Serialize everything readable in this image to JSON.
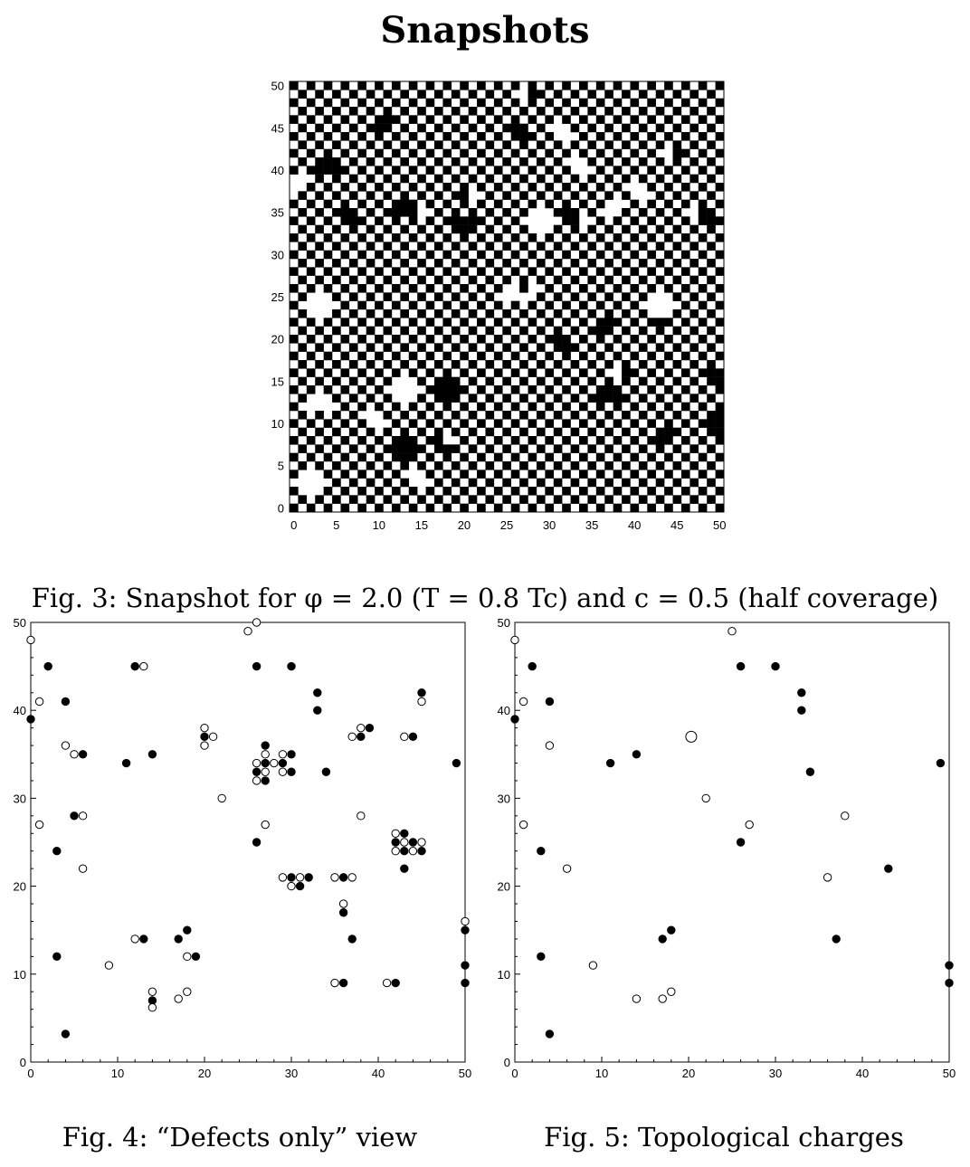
{
  "page_title": "Snapshots",
  "captions": {
    "fig3": "Fig. 3: Snapshot for φ = 2.0 (T = 0.8 Tc) and c = 0.5 (half coverage)",
    "fig4": "Fig. 4: “Defects only” view",
    "fig5": "Fig. 5: Topological charges"
  },
  "colors": {
    "occupied": "#000000",
    "empty": "#ffffff",
    "axis": "#000000"
  },
  "chart_data": [
    {
      "id": "snapshot",
      "type": "heatmap",
      "title": "",
      "xlabel": "",
      "ylabel": "",
      "xlim": [
        0,
        50
      ],
      "ylim": [
        0,
        50
      ],
      "ticks": [
        0,
        5,
        10,
        15,
        20,
        25,
        30,
        35,
        40,
        45,
        50
      ],
      "lattice_size": 51,
      "base_pattern": "checkerboard (black where x+y is even)",
      "flipped_sites_note": "sites deviating from perfect checkerboard (approximate)",
      "flipped_sites": [
        [
          1,
          3
        ],
        [
          3,
          3
        ],
        [
          2,
          4
        ],
        [
          2,
          2
        ],
        [
          12,
          7
        ],
        [
          14,
          7
        ],
        [
          13,
          8
        ],
        [
          13,
          6
        ],
        [
          17,
          8
        ],
        [
          18,
          8
        ],
        [
          18,
          7
        ],
        [
          9,
          11
        ],
        [
          10,
          10
        ],
        [
          2,
          12
        ],
        [
          4,
          12
        ],
        [
          3,
          13
        ],
        [
          12,
          14
        ],
        [
          14,
          14
        ],
        [
          13,
          13
        ],
        [
          13,
          15
        ],
        [
          17,
          14
        ],
        [
          19,
          14
        ],
        [
          18,
          15
        ],
        [
          18,
          13
        ],
        [
          37,
          14
        ],
        [
          38,
          13
        ],
        [
          36,
          13
        ],
        [
          2,
          24
        ],
        [
          4,
          24
        ],
        [
          3,
          25
        ],
        [
          3,
          23
        ],
        [
          26,
          26
        ],
        [
          25,
          25
        ],
        [
          27,
          25
        ],
        [
          42,
          24
        ],
        [
          44,
          24
        ],
        [
          43,
          25
        ],
        [
          43,
          23
        ],
        [
          43,
          22
        ],
        [
          6,
          35
        ],
        [
          7,
          34
        ],
        [
          19,
          34
        ],
        [
          20,
          33
        ],
        [
          21,
          34
        ],
        [
          28,
          34
        ],
        [
          30,
          34
        ],
        [
          29,
          35
        ],
        [
          29,
          33
        ],
        [
          12,
          35
        ],
        [
          14,
          35
        ],
        [
          13,
          36
        ],
        [
          15,
          35
        ],
        [
          32,
          35
        ],
        [
          33,
          34
        ],
        [
          34,
          34
        ],
        [
          37,
          35
        ],
        [
          38,
          36
        ],
        [
          27,
          26
        ],
        [
          28,
          26
        ],
        [
          3,
          40
        ],
        [
          5,
          40
        ],
        [
          4,
          41
        ],
        [
          0,
          38
        ],
        [
          1,
          39
        ],
        [
          20,
          37
        ],
        [
          21,
          37
        ],
        [
          10,
          45
        ],
        [
          11,
          46
        ],
        [
          26,
          45
        ],
        [
          27,
          44
        ],
        [
          31,
          45
        ],
        [
          32,
          44
        ],
        [
          47,
          35
        ],
        [
          48,
          35
        ],
        [
          49,
          34
        ],
        [
          34,
          40
        ],
        [
          33,
          41
        ],
        [
          45,
          42
        ],
        [
          44,
          42
        ],
        [
          27,
          49
        ],
        [
          28,
          49
        ],
        [
          50,
          15
        ],
        [
          49,
          16
        ],
        [
          50,
          9
        ],
        [
          49,
          10
        ],
        [
          50,
          11
        ],
        [
          37,
          22
        ],
        [
          36,
          21
        ],
        [
          38,
          16
        ],
        [
          39,
          16
        ],
        [
          14,
          4
        ],
        [
          15,
          3
        ],
        [
          31,
          20
        ],
        [
          32,
          19
        ],
        [
          43,
          8
        ],
        [
          44,
          9
        ],
        [
          40,
          38
        ],
        [
          41,
          37
        ]
      ]
    },
    {
      "id": "defects",
      "type": "scatter",
      "title": "",
      "xlabel": "",
      "ylabel": "",
      "xlim": [
        0,
        50
      ],
      "ylim": [
        0,
        50
      ],
      "xticks": [
        0,
        10,
        20,
        30,
        40,
        50
      ],
      "yticks": [
        0,
        10,
        20,
        30,
        40,
        50
      ],
      "series": [
        {
          "marker": "filled",
          "points": [
            [
              0,
              39
            ],
            [
              2,
              45
            ],
            [
              4,
              41
            ],
            [
              6,
              35
            ],
            [
              5,
              28
            ],
            [
              3,
              24
            ],
            [
              3,
              12
            ],
            [
              4,
              3.2
            ],
            [
              11,
              34
            ],
            [
              12,
              45
            ],
            [
              14,
              35
            ],
            [
              13,
              14
            ],
            [
              17,
              14
            ],
            [
              18,
              15
            ],
            [
              19,
              12
            ],
            [
              14,
              7
            ],
            [
              20,
              37
            ],
            [
              26,
              45
            ],
            [
              27,
              36
            ],
            [
              27,
              34
            ],
            [
              26,
              33
            ],
            [
              27,
              32
            ],
            [
              26,
              25
            ],
            [
              30,
              45
            ],
            [
              30,
              35
            ],
            [
              29,
              34
            ],
            [
              30,
              33
            ],
            [
              33,
              42
            ],
            [
              33,
              40
            ],
            [
              34,
              33
            ],
            [
              30,
              21
            ],
            [
              31,
              20
            ],
            [
              32,
              21
            ],
            [
              36,
              21
            ],
            [
              36,
              17
            ],
            [
              37,
              14
            ],
            [
              36,
              9
            ],
            [
              38,
              37
            ],
            [
              39,
              38
            ],
            [
              43,
              26
            ],
            [
              42,
              25
            ],
            [
              44,
              25
            ],
            [
              43,
              24
            ],
            [
              45,
              24
            ],
            [
              45,
              42
            ],
            [
              44,
              37
            ],
            [
              43,
              22
            ],
            [
              42,
              9
            ],
            [
              49,
              34
            ],
            [
              50,
              15
            ],
            [
              50,
              11
            ],
            [
              50,
              9
            ]
          ]
        },
        {
          "marker": "open",
          "points": [
            [
              0,
              48
            ],
            [
              1,
              41
            ],
            [
              1,
              27
            ],
            [
              4,
              36
            ],
            [
              5,
              35
            ],
            [
              6,
              28
            ],
            [
              6,
              22
            ],
            [
              9,
              11
            ],
            [
              12,
              14
            ],
            [
              13,
              45
            ],
            [
              14,
              8
            ],
            [
              14,
              6.2
            ],
            [
              17,
              7.2
            ],
            [
              18,
              12
            ],
            [
              18,
              8
            ],
            [
              20,
              38
            ],
            [
              20,
              36
            ],
            [
              21,
              37
            ],
            [
              22,
              30
            ],
            [
              25,
              49
            ],
            [
              26,
              50
            ],
            [
              27,
              35
            ],
            [
              26,
              34
            ],
            [
              28,
              34
            ],
            [
              27,
              33
            ],
            [
              26,
              32
            ],
            [
              29,
              35
            ],
            [
              29,
              33
            ],
            [
              27,
              27
            ],
            [
              29,
              21
            ],
            [
              30,
              20
            ],
            [
              31,
              21
            ],
            [
              35,
              21
            ],
            [
              37,
              21
            ],
            [
              36,
              18
            ],
            [
              35,
              9
            ],
            [
              41,
              9
            ],
            [
              37,
              37
            ],
            [
              38,
              38
            ],
            [
              38,
              28
            ],
            [
              43,
              37
            ],
            [
              45,
              41
            ],
            [
              42,
              26
            ],
            [
              43,
              25
            ],
            [
              42,
              24
            ],
            [
              44,
              24
            ],
            [
              45,
              25
            ],
            [
              50,
              16
            ]
          ]
        }
      ]
    },
    {
      "id": "charges",
      "type": "scatter",
      "title": "",
      "xlabel": "",
      "ylabel": "",
      "xlim": [
        0,
        50
      ],
      "ylim": [
        0,
        50
      ],
      "xticks": [
        0,
        10,
        20,
        30,
        40,
        50
      ],
      "yticks": [
        0,
        10,
        20,
        30,
        40,
        50
      ],
      "series": [
        {
          "marker": "filled",
          "points": [
            [
              0,
              39
            ],
            [
              2,
              45
            ],
            [
              4,
              41
            ],
            [
              3,
              24
            ],
            [
              3,
              12
            ],
            [
              4,
              3.2
            ],
            [
              11,
              34
            ],
            [
              14,
              35
            ],
            [
              17,
              14
            ],
            [
              18,
              15
            ],
            [
              26,
              45
            ],
            [
              26,
              25
            ],
            [
              30,
              45
            ],
            [
              33,
              42
            ],
            [
              33,
              40
            ],
            [
              34,
              33
            ],
            [
              37,
              14
            ],
            [
              43,
              22
            ],
            [
              49,
              34
            ],
            [
              50,
              11
            ],
            [
              50,
              9
            ]
          ]
        },
        {
          "marker": "open",
          "points": [
            [
              0,
              48
            ],
            [
              1,
              41
            ],
            [
              1,
              27
            ],
            [
              4,
              36
            ],
            [
              6,
              22
            ],
            [
              9,
              11
            ],
            [
              14,
              7.2
            ],
            [
              17,
              7.2
            ],
            [
              18,
              8
            ],
            [
              22,
              30
            ],
            [
              25,
              49
            ],
            [
              27,
              27
            ],
            [
              36,
              21
            ],
            [
              38,
              28
            ]
          ]
        },
        {
          "marker": "open-large",
          "points": [
            [
              20.3,
              37
            ]
          ]
        }
      ]
    }
  ]
}
